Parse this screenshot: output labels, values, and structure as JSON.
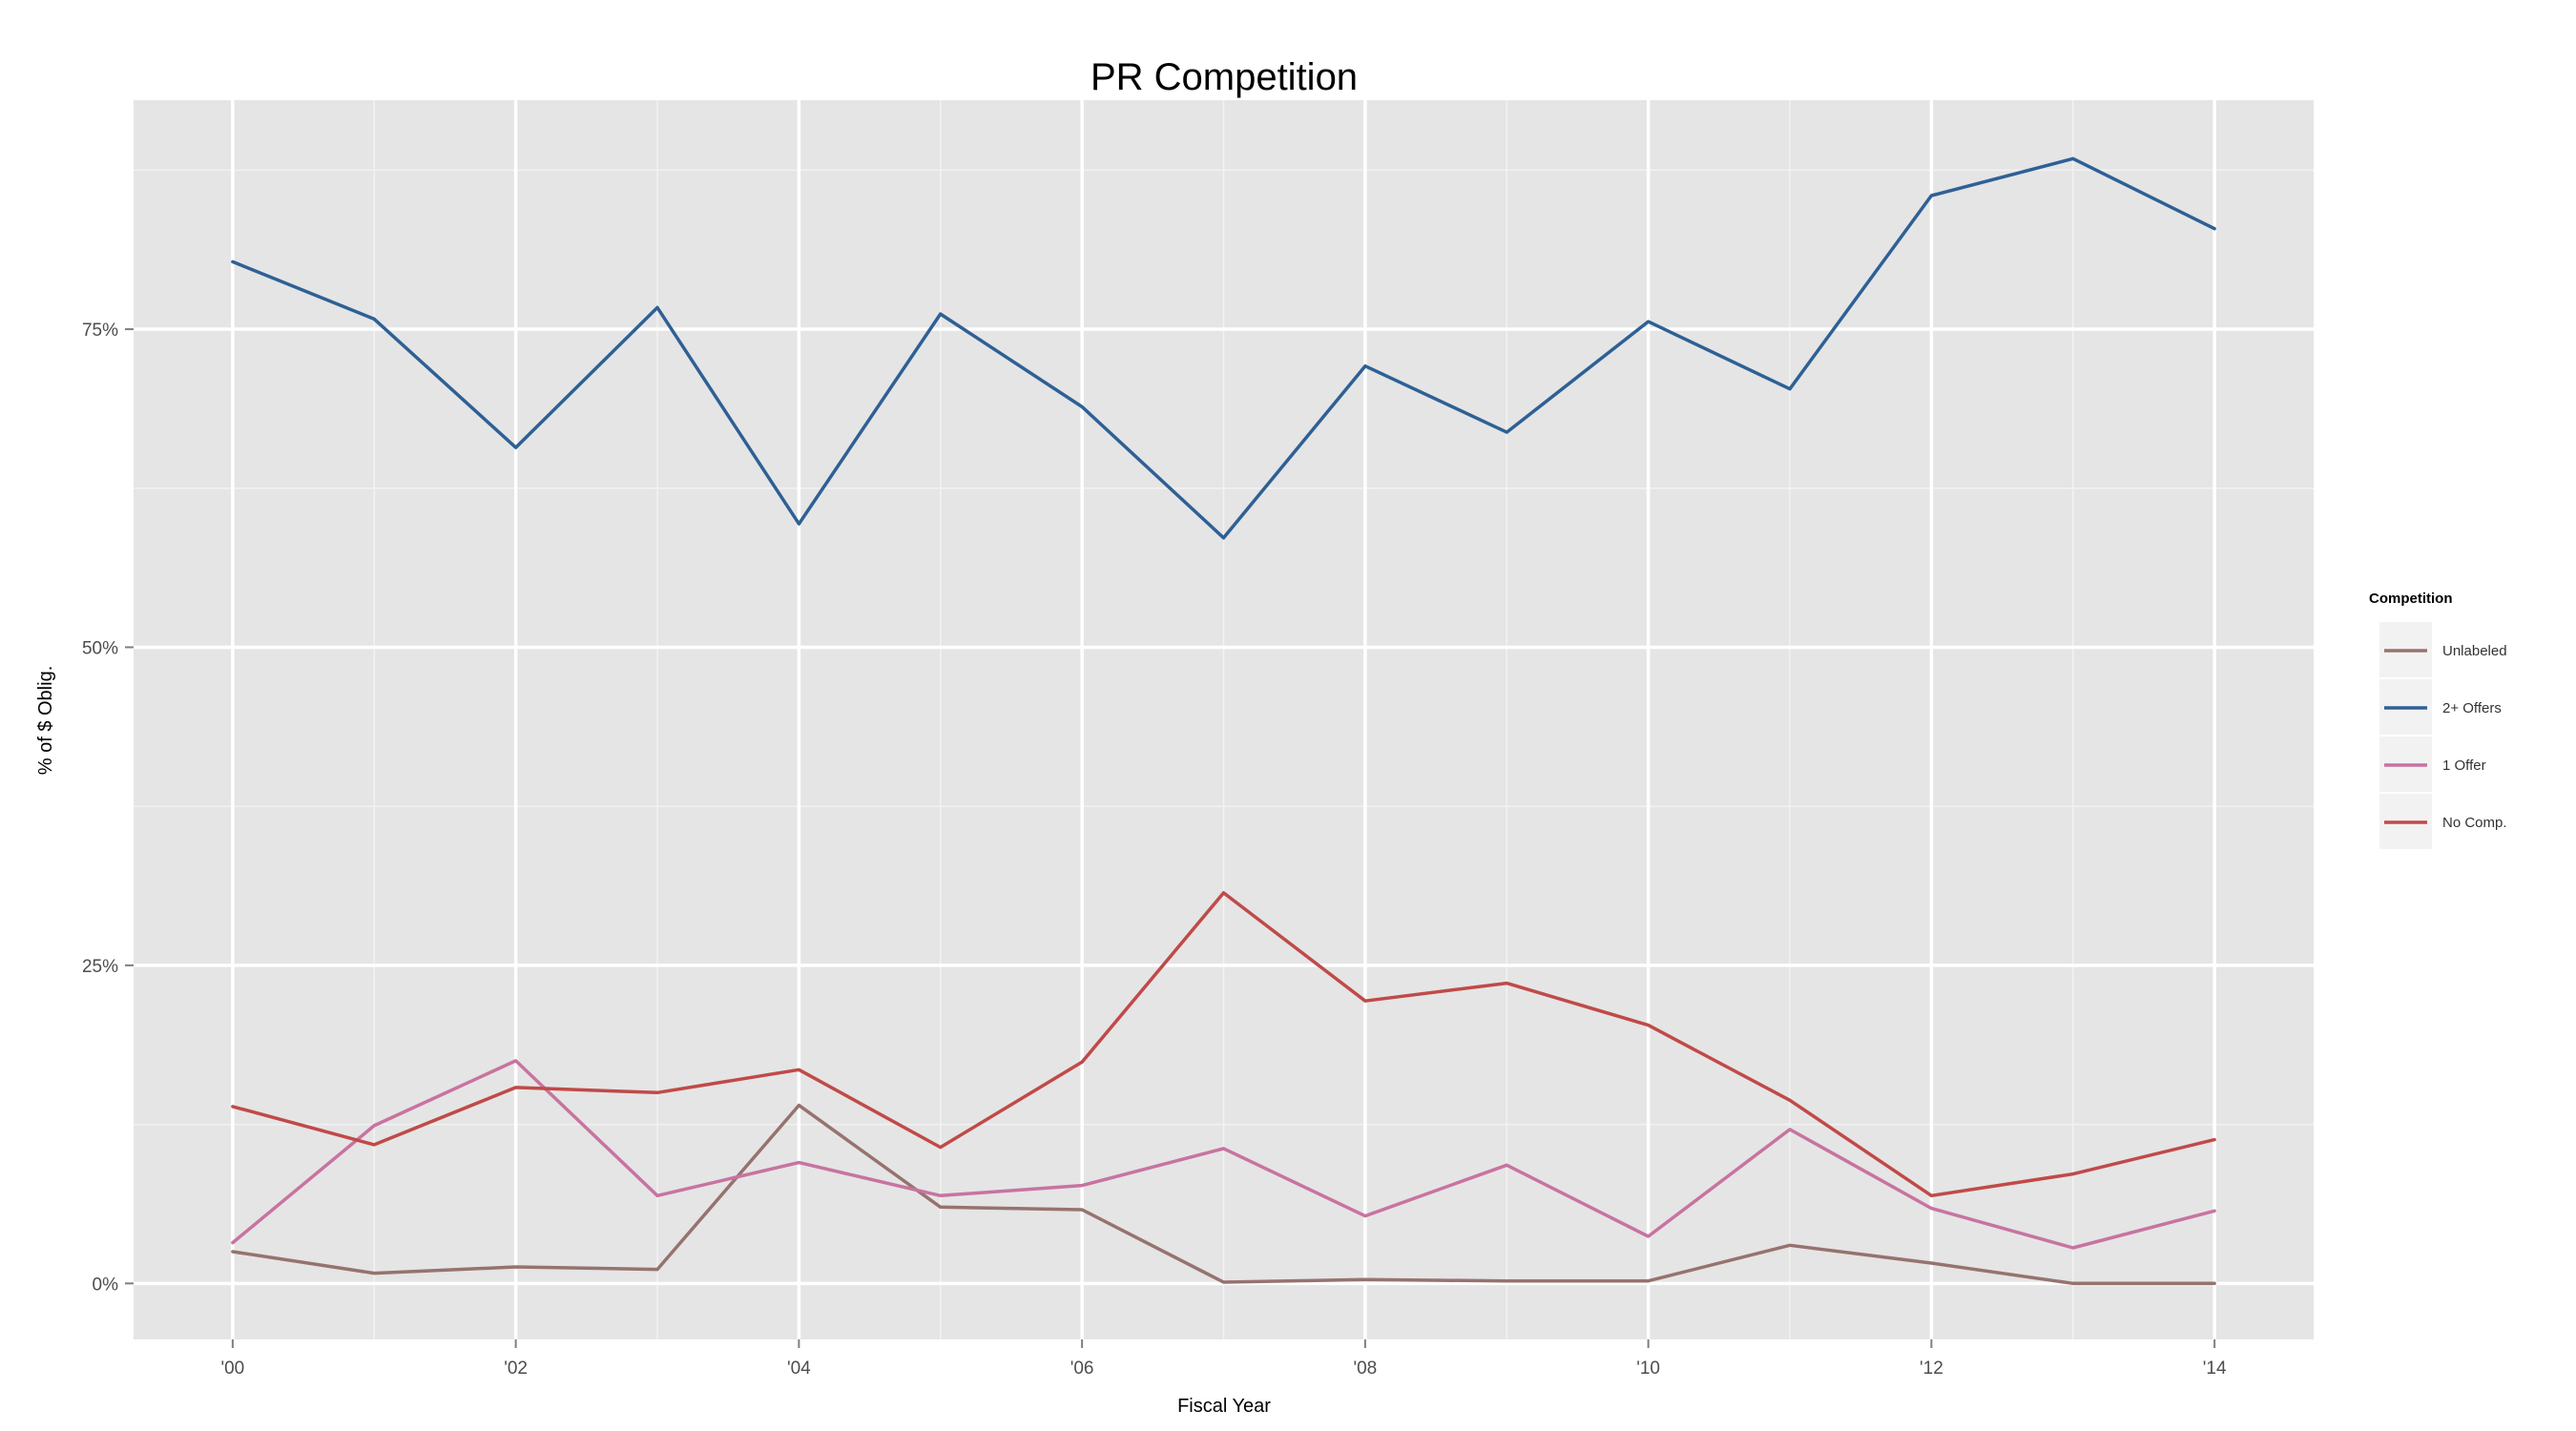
{
  "chart_data": {
    "type": "line",
    "title": "PR Competition",
    "xlabel": "Fiscal Year",
    "ylabel": "% of $ Oblig.",
    "x": [
      2000,
      2001,
      2002,
      2003,
      2004,
      2005,
      2006,
      2007,
      2008,
      2009,
      2010,
      2011,
      2012,
      2013,
      2014
    ],
    "x_ticks": [
      2000,
      2002,
      2004,
      2006,
      2008,
      2010,
      2012,
      2014
    ],
    "x_tick_labels": [
      "'00",
      "'02",
      "'04",
      "'06",
      "'08",
      "'10",
      "'12",
      "'14"
    ],
    "xlim": [
      1999.3,
      2014.7
    ],
    "y_ticks": [
      0,
      25,
      50,
      75
    ],
    "y_tick_labels": [
      "0%",
      "25%",
      "50%",
      "75%"
    ],
    "ylim": [
      -4.4,
      93
    ],
    "grid": true,
    "legend": {
      "title": "Competition",
      "position": "right"
    },
    "series": [
      {
        "name": "Unlabeled",
        "color": "#96736f",
        "values": [
          2.5,
          0.8,
          1.3,
          1.1,
          14.0,
          6.0,
          5.8,
          0.1,
          0.3,
          0.2,
          0.2,
          3.0,
          1.6,
          0.0,
          0.0
        ]
      },
      {
        "name": "2+ Offers",
        "color": "#2e6095",
        "values": [
          80.3,
          75.8,
          65.7,
          76.7,
          59.7,
          76.2,
          68.9,
          58.6,
          72.1,
          66.9,
          75.6,
          70.3,
          85.5,
          88.4,
          82.9
        ]
      },
      {
        "name": "1 Offer",
        "color": "#c873a0",
        "values": [
          3.2,
          12.4,
          17.5,
          6.9,
          9.5,
          6.9,
          7.7,
          10.6,
          5.3,
          9.3,
          3.7,
          12.1,
          5.9,
          2.8,
          5.7
        ]
      },
      {
        "name": "No Comp.",
        "color": "#c04a48",
        "values": [
          13.9,
          10.9,
          15.4,
          15.0,
          16.8,
          10.7,
          17.4,
          30.7,
          22.2,
          23.6,
          20.3,
          14.4,
          6.9,
          8.6,
          11.3
        ]
      }
    ]
  }
}
